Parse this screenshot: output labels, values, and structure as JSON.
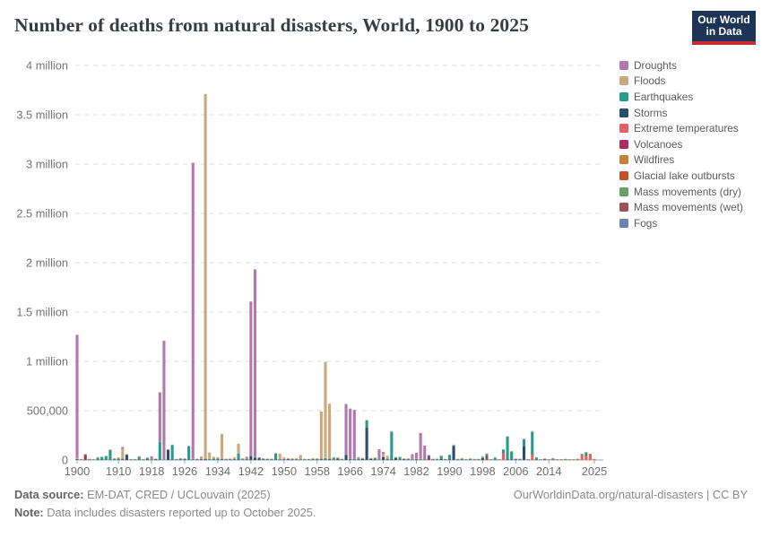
{
  "header": {
    "title": "Number of deaths from natural disasters, World, 1900 to 2025"
  },
  "logo": {
    "line1": "Our World",
    "line2": "in Data",
    "bg_color": "#1d3456",
    "accent_color": "#c22d33"
  },
  "legend": {
    "position": "right",
    "items": [
      {
        "key": "d",
        "label": "Droughts",
        "color": "#b377b0"
      },
      {
        "key": "f",
        "label": "Floods",
        "color": "#cda87c"
      },
      {
        "key": "e",
        "label": "Earthquakes",
        "color": "#279b8d"
      },
      {
        "key": "s",
        "label": "Storms",
        "color": "#284e6f"
      },
      {
        "key": "t",
        "label": "Extreme temperatures",
        "color": "#e8605f"
      },
      {
        "key": "v",
        "label": "Volcanoes",
        "color": "#ac2d63"
      },
      {
        "key": "w",
        "label": "Wildfires",
        "color": "#c57f38"
      },
      {
        "key": "g",
        "label": "Glacial lake outbursts",
        "color": "#c2532b"
      },
      {
        "key": "md",
        "label": "Mass movements (dry)",
        "color": "#68a063"
      },
      {
        "key": "mw",
        "label": "Mass movements (wet)",
        "color": "#9e5253"
      },
      {
        "key": "fo",
        "label": "Fogs",
        "color": "#6e82b5"
      }
    ]
  },
  "footer": {
    "source_label": "Data source:",
    "source_text": " EM-DAT, CRED / UCLouvain (2025)",
    "note_label": "Note:",
    "note_text": " Data includes disasters reported up to October 2025.",
    "link": "OurWorldinData.org/natural-disasters | CC BY"
  },
  "chart_data": {
    "type": "bar",
    "stacked": true,
    "title": "Number of deaths from natural disasters, World, 1900 to 2025",
    "xlabel": "",
    "ylabel": "",
    "ylim": [
      0,
      4000000
    ],
    "grid": "dashed-horizontal",
    "legend_position": "right",
    "values_in": "thousands of deaths",
    "stack_order_bottom_to_top": [
      "fo",
      "mw",
      "md",
      "g",
      "w",
      "v",
      "t",
      "s",
      "e",
      "f",
      "d"
    ],
    "y_ticks": [
      {
        "v": 0,
        "label": "0"
      },
      {
        "v": 500,
        "label": "500,000"
      },
      {
        "v": 1000,
        "label": "1 million"
      },
      {
        "v": 1500,
        "label": "1.5 million"
      },
      {
        "v": 2000,
        "label": "2 million"
      },
      {
        "v": 2500,
        "label": "2.5 million"
      },
      {
        "v": 3000,
        "label": "3 million"
      },
      {
        "v": 3500,
        "label": "3.5 million"
      },
      {
        "v": 4000,
        "label": "4 million"
      }
    ],
    "x_tick_years": [
      1900,
      1910,
      1918,
      1926,
      1934,
      1942,
      1950,
      1958,
      1966,
      1974,
      1982,
      1990,
      1998,
      2006,
      2014,
      2025
    ],
    "rows": [
      {
        "y": 1900,
        "d": 1250,
        "f": 10,
        "e": 2,
        "s": 6,
        "v": 1
      },
      {
        "y": 1901,
        "f": 2,
        "e": 1,
        "s": 2
      },
      {
        "y": 1902,
        "f": 1,
        "e": 10,
        "s": 1,
        "v": 45
      },
      {
        "y": 1903,
        "f": 2,
        "e": 2,
        "s": 2,
        "md": 2
      },
      {
        "y": 1904,
        "f": 2,
        "e": 1,
        "s": 1
      },
      {
        "y": 1905,
        "f": 2,
        "e": 22,
        "s": 1
      },
      {
        "y": 1906,
        "f": 2,
        "e": 24,
        "s": 4
      },
      {
        "y": 1907,
        "f": 3,
        "e": 36,
        "s": 2
      },
      {
        "y": 1908,
        "f": 2,
        "e": 98,
        "s": 2
      },
      {
        "y": 1909,
        "f": 3,
        "e": 10,
        "s": 2
      },
      {
        "y": 1910,
        "f": 10,
        "e": 14,
        "s": 2
      },
      {
        "y": 1911,
        "d": 20,
        "f": 100,
        "e": 4,
        "s": 2,
        "v": 6
      },
      {
        "y": 1912,
        "f": 3,
        "e": 3,
        "s": 50
      },
      {
        "y": 1913,
        "f": 3,
        "e": 2,
        "s": 2
      },
      {
        "y": 1914,
        "f": 3,
        "e": 2,
        "s": 2
      },
      {
        "y": 1915,
        "f": 2,
        "e": 30,
        "s": 2
      },
      {
        "y": 1916,
        "f": 4,
        "e": 2,
        "s": 2
      },
      {
        "y": 1917,
        "f": 4,
        "e": 15,
        "s": 2,
        "v": 3
      },
      {
        "y": 1918,
        "d": 28,
        "f": 4,
        "e": 3,
        "s": 3
      },
      {
        "y": 1919,
        "f": 3,
        "e": 2,
        "s": 3,
        "v": 3
      },
      {
        "y": 1920,
        "d": 500,
        "f": 4,
        "e": 180,
        "s": 2
      },
      {
        "y": 1921,
        "d": 1200,
        "f": 4,
        "e": 2,
        "s": 2
      },
      {
        "y": 1922,
        "f": 4,
        "e": 3,
        "s": 100
      },
      {
        "y": 1923,
        "f": 3,
        "e": 147,
        "s": 3
      },
      {
        "y": 1924,
        "f": 6,
        "e": 2,
        "s": 3
      },
      {
        "y": 1925,
        "f": 4,
        "e": 10,
        "s": 3
      },
      {
        "y": 1926,
        "f": 8,
        "e": 6,
        "s": 4
      },
      {
        "y": 1927,
        "f": 4,
        "e": 135,
        "s": 3
      },
      {
        "y": 1928,
        "d": 3000,
        "f": 6,
        "e": 4,
        "s": 3
      },
      {
        "y": 1929,
        "f": 6,
        "e": 4,
        "s": 3
      },
      {
        "y": 1930,
        "f": 28,
        "e": 3,
        "s": 3,
        "v": 2
      },
      {
        "y": 1931,
        "f": 3700,
        "e": 3,
        "s": 8
      },
      {
        "y": 1932,
        "f": 70,
        "e": 3,
        "s": 3
      },
      {
        "y": 1933,
        "f": 18,
        "e": 12,
        "s": 3
      },
      {
        "y": 1934,
        "f": 14,
        "e": 11,
        "s": 3
      },
      {
        "y": 1935,
        "f": 255,
        "e": 4,
        "s": 6
      },
      {
        "y": 1936,
        "f": 8,
        "e": 2,
        "s": 4
      },
      {
        "y": 1937,
        "f": 10,
        "e": 2,
        "s": 4
      },
      {
        "y": 1938,
        "f": 20,
        "e": 2,
        "s": 5
      },
      {
        "y": 1939,
        "f": 100,
        "e": 61,
        "s": 5
      },
      {
        "y": 1940,
        "f": 12,
        "e": 3,
        "s": 3
      },
      {
        "y": 1941,
        "d": 15,
        "f": 6,
        "e": 2,
        "s": 3,
        "g": 6
      },
      {
        "y": 1942,
        "d": 1560,
        "f": 5,
        "e": 2,
        "s": 40
      },
      {
        "y": 1943,
        "d": 1900,
        "f": 5,
        "e": 3,
        "s": 25
      },
      {
        "y": 1944,
        "f": 6,
        "e": 4,
        "s": 18
      },
      {
        "y": 1945,
        "f": 4,
        "e": 6,
        "s": 6
      },
      {
        "y": 1946,
        "f": 3,
        "e": 6,
        "s": 3
      },
      {
        "y": 1947,
        "f": 4,
        "e": 3,
        "s": 4
      },
      {
        "y": 1948,
        "f": 4,
        "e": 62,
        "s": 3
      },
      {
        "y": 1949,
        "f": 60,
        "e": 3,
        "s": 3
      },
      {
        "y": 1950,
        "f": 20,
        "e": 3,
        "s": 3
      },
      {
        "y": 1951,
        "f": 10,
        "e": 2,
        "s": 3,
        "v": 4
      },
      {
        "y": 1952,
        "f": 4,
        "e": 4,
        "s": 2,
        "fo": 4
      },
      {
        "y": 1953,
        "f": 10,
        "e": 2,
        "s": 5
      },
      {
        "y": 1954,
        "f": 45,
        "e": 2,
        "s": 3
      },
      {
        "y": 1955,
        "f": 8,
        "e": 2,
        "s": 3
      },
      {
        "y": 1956,
        "f": 4,
        "e": 2,
        "s": 3
      },
      {
        "y": 1957,
        "f": 8,
        "e": 8,
        "s": 3
      },
      {
        "y": 1958,
        "f": 12,
        "e": 2,
        "s": 4
      },
      {
        "y": 1959,
        "f": 480,
        "e": 3,
        "s": 8
      },
      {
        "y": 1960,
        "f": 975,
        "e": 14,
        "s": 6
      },
      {
        "y": 1961,
        "f": 560,
        "e": 3,
        "s": 8
      },
      {
        "y": 1962,
        "f": 5,
        "e": 13,
        "s": 4,
        "md": 5
      },
      {
        "y": 1963,
        "f": 8,
        "e": 2,
        "s": 12,
        "v": 2,
        "mw": 2
      },
      {
        "y": 1964,
        "f": 5,
        "e": 2,
        "s": 4
      },
      {
        "y": 1965,
        "d": 510,
        "f": 5,
        "e": 2,
        "s": 50
      },
      {
        "y": 1966,
        "d": 508,
        "f": 6,
        "e": 3,
        "s": 4
      },
      {
        "y": 1967,
        "d": 495,
        "f": 6,
        "e": 3,
        "s": 4
      },
      {
        "y": 1968,
        "d": 4,
        "f": 6,
        "e": 12,
        "s": 4
      },
      {
        "y": 1969,
        "f": 6,
        "e": 3,
        "s": 12
      },
      {
        "y": 1970,
        "f": 6,
        "e": 70,
        "s": 330
      },
      {
        "y": 1971,
        "f": 6,
        "e": 2,
        "s": 12
      },
      {
        "y": 1972,
        "f": 4,
        "e": 16,
        "s": 4
      },
      {
        "y": 1973,
        "d": 100,
        "f": 4,
        "e": 2,
        "s": 3
      },
      {
        "y": 1974,
        "d": 20,
        "f": 30,
        "e": 3,
        "s": 28
      },
      {
        "y": 1975,
        "f": 30,
        "e": 10,
        "s": 3
      },
      {
        "y": 1976,
        "d": 8,
        "f": 4,
        "e": 276,
        "s": 3,
        "v": 2
      },
      {
        "y": 1977,
        "f": 4,
        "e": 5,
        "s": 20
      },
      {
        "y": 1978,
        "f": 4,
        "e": 25,
        "s": 2
      },
      {
        "y": 1979,
        "f": 4,
        "e": 3,
        "s": 5,
        "v": 2
      },
      {
        "y": 1980,
        "f": 4,
        "e": 9,
        "s": 2
      },
      {
        "y": 1981,
        "d": 48,
        "f": 6,
        "e": 3,
        "s": 2
      },
      {
        "y": 1982,
        "d": 58,
        "f": 8,
        "e": 2,
        "s": 3,
        "v": 3
      },
      {
        "y": 1983,
        "d": 263,
        "f": 6,
        "e": 2,
        "s": 3
      },
      {
        "y": 1984,
        "d": 138,
        "f": 4,
        "e": 2,
        "s": 2
      },
      {
        "y": 1985,
        "f": 6,
        "e": 11,
        "s": 12,
        "v": 23
      },
      {
        "y": 1986,
        "f": 4,
        "e": 2,
        "s": 2,
        "v": 2
      },
      {
        "y": 1987,
        "f": 4,
        "e": 6,
        "s": 2
      },
      {
        "y": 1988,
        "f": 4,
        "e": 28,
        "s": 12
      },
      {
        "y": 1989,
        "f": 4,
        "e": 2,
        "s": 3
      },
      {
        "y": 1990,
        "f": 4,
        "e": 45,
        "s": 4
      },
      {
        "y": 1991,
        "f": 10,
        "e": 3,
        "s": 142,
        "v": 1
      },
      {
        "y": 1992,
        "f": 4,
        "e": 4,
        "s": 2
      },
      {
        "y": 1993,
        "f": 8,
        "e": 10,
        "s": 2
      },
      {
        "y": 1994,
        "f": 4,
        "e": 2,
        "s": 2
      },
      {
        "y": 1995,
        "f": 4,
        "e": 9,
        "s": 2
      },
      {
        "y": 1996,
        "f": 8,
        "e": 1,
        "s": 3
      },
      {
        "y": 1997,
        "f": 4,
        "e": 2,
        "s": 3
      },
      {
        "y": 1998,
        "f": 12,
        "e": 6,
        "s": 20
      },
      {
        "y": 1999,
        "f": 6,
        "e": 20,
        "s": 10,
        "mw": 30
      },
      {
        "y": 2000,
        "f": 4,
        "e": 1,
        "s": 2
      },
      {
        "y": 2001,
        "f": 3,
        "e": 21,
        "s": 1
      },
      {
        "y": 2002,
        "f": 3,
        "e": 2,
        "s": 1
      },
      {
        "y": 2003,
        "f": 2,
        "e": 29,
        "s": 1,
        "t": 74
      },
      {
        "y": 2004,
        "f": 4,
        "e": 228,
        "s": 8
      },
      {
        "y": 2005,
        "f": 4,
        "e": 80,
        "s": 5
      },
      {
        "y": 2006,
        "f": 3,
        "e": 7,
        "s": 3
      },
      {
        "y": 2007,
        "f": 5,
        "e": 1,
        "s": 6
      },
      {
        "y": 2008,
        "f": 2,
        "e": 70,
        "s": 140
      },
      {
        "y": 2009,
        "f": 2,
        "e": 2,
        "s": 2
      },
      {
        "y": 2010,
        "f": 10,
        "e": 227,
        "s": 1,
        "t": 57
      },
      {
        "y": 2011,
        "f": 3,
        "e": 20,
        "s": 3
      },
      {
        "y": 2012,
        "f": 2,
        "e": 1,
        "s": 2
      },
      {
        "y": 2013,
        "f": 7,
        "e": 1,
        "s": 8
      },
      {
        "y": 2014,
        "f": 3,
        "e": 1,
        "s": 1
      },
      {
        "y": 2015,
        "f": 2,
        "e": 9,
        "s": 1,
        "t": 4
      },
      {
        "y": 2016,
        "f": 2,
        "e": 1,
        "s": 1,
        "t": 1
      },
      {
        "y": 2017,
        "f": 2,
        "e": 1,
        "s": 1,
        "t": 1
      },
      {
        "y": 2018,
        "f": 2,
        "e": 4,
        "s": 1,
        "t": 1
      },
      {
        "y": 2019,
        "f": 2,
        "s": 1,
        "t": 1
      },
      {
        "y": 2020,
        "f": 2,
        "s": 1,
        "t": 2
      },
      {
        "y": 2021,
        "f": 2,
        "e": 3,
        "s": 1,
        "t": 3
      },
      {
        "y": 2022,
        "f": 3,
        "e": 1,
        "s": 1,
        "t": 55
      },
      {
        "y": 2023,
        "f": 2,
        "e": 35,
        "s": 1,
        "t": 40
      },
      {
        "y": 2024,
        "f": 3,
        "e": 1,
        "s": 1,
        "t": 55
      },
      {
        "y": 2025,
        "f": 2,
        "e": 1,
        "s": 1,
        "t": 3
      }
    ]
  }
}
